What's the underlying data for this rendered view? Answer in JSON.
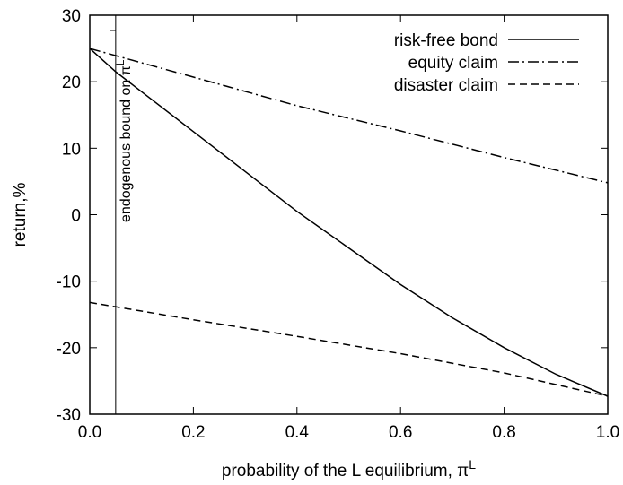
{
  "chart_data": {
    "type": "line",
    "xlabel": "probability of the L equilibrium, π",
    "xlabel_superscript": "L",
    "ylabel": "return,%",
    "xlim": [
      0,
      1
    ],
    "ylim": [
      -30,
      30
    ],
    "xticks": [
      "0.0",
      "0.2",
      "0.4",
      "0.6",
      "0.8",
      "1.0"
    ],
    "yticks": [
      "30",
      "20",
      "10",
      "0",
      "-10",
      "-20",
      "-30"
    ],
    "grid": false,
    "legend_position": "top-right",
    "series": [
      {
        "name": "risk-free bond",
        "style": "solid",
        "x": [
          0.0,
          0.05,
          0.1,
          0.2,
          0.3,
          0.4,
          0.5,
          0.6,
          0.7,
          0.8,
          0.9,
          1.0
        ],
        "y": [
          25.0,
          21.5,
          18.5,
          12.5,
          6.5,
          0.5,
          -5.0,
          -10.5,
          -15.5,
          -20.0,
          -24.0,
          -27.3
        ]
      },
      {
        "name": "equity claim",
        "style": "dashdot",
        "x": [
          0.0,
          0.2,
          0.4,
          0.6,
          0.8,
          1.0
        ],
        "y": [
          25.0,
          20.7,
          16.4,
          12.6,
          8.6,
          4.8
        ]
      },
      {
        "name": "disaster claim",
        "style": "dashed",
        "x": [
          0.0,
          0.2,
          0.4,
          0.6,
          0.8,
          1.0
        ],
        "y": [
          -13.2,
          -15.8,
          -18.3,
          -20.9,
          -23.8,
          -27.3
        ]
      }
    ],
    "annotations": [
      {
        "text": "endogenous bound on π",
        "superscript": "L",
        "x": 0.05,
        "orientation": "vertical"
      }
    ]
  }
}
